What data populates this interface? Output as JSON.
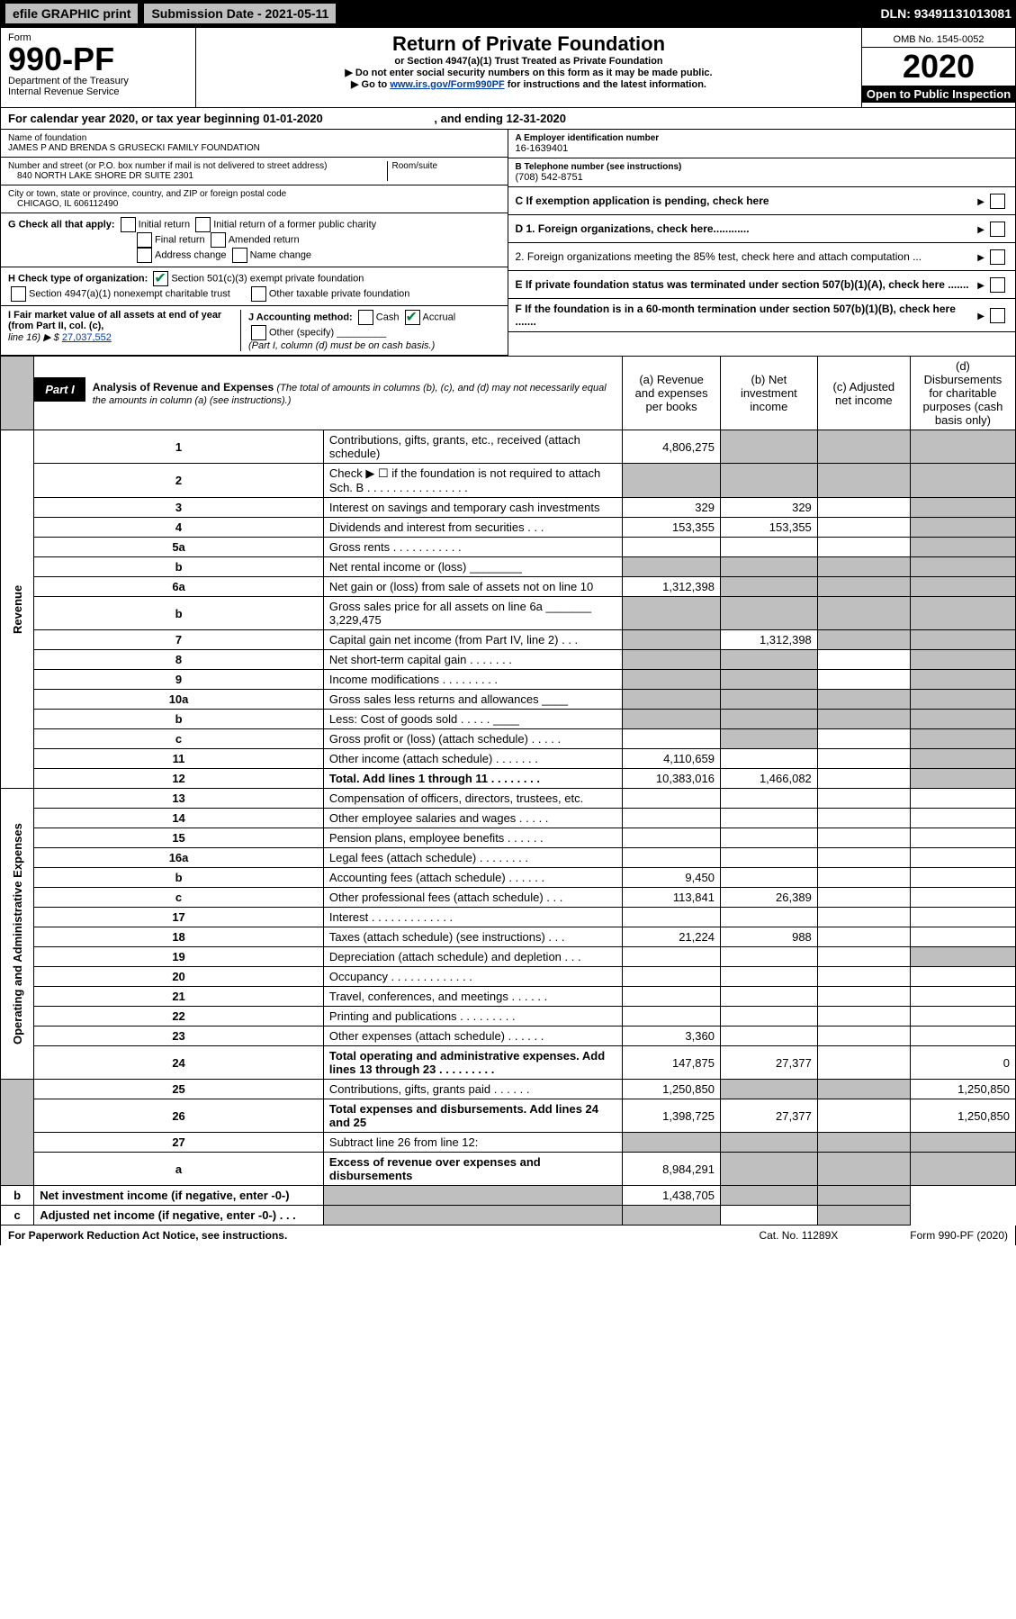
{
  "top_bar": {
    "efile": "efile GRAPHIC print",
    "submission_label": "Submission Date - 2021-05-11",
    "dln": "DLN: 93491131013081"
  },
  "header": {
    "form_text": "Form",
    "form_number": "990-PF",
    "dept": "Department of the Treasury",
    "irs": "Internal Revenue Service",
    "title": "Return of Private Foundation",
    "subtitle": "or Section 4947(a)(1) Trust Treated as Private Foundation",
    "note1": "▶ Do not enter social security numbers on this form as it may be made public.",
    "note2_prefix": "▶ Go to ",
    "note2_link": "www.irs.gov/Form990PF",
    "note2_suffix": " for instructions and the latest information.",
    "omb": "OMB No. 1545-0052",
    "year": "2020",
    "open": "Open to Public Inspection"
  },
  "calendar": {
    "text": "For calendar year 2020, or tax year beginning 01-01-2020",
    "ending": ", and ending 12-31-2020"
  },
  "info_left": {
    "name_label": "Name of foundation",
    "name": "JAMES P AND BRENDA S GRUSECKI FAMILY FOUNDATION",
    "addr_label": "Number and street (or P.O. box number if mail is not delivered to street address)",
    "addr": "840 NORTH LAKE SHORE DR SUITE 2301",
    "room_label": "Room/suite",
    "city_label": "City or town, state or province, country, and ZIP or foreign postal code",
    "city": "CHICAGO, IL  606112490",
    "g_label": "G Check all that apply:",
    "g_opts": {
      "initial": "Initial return",
      "initial_former": "Initial return of a former public charity",
      "final": "Final return",
      "amended": "Amended return",
      "addr_change": "Address change",
      "name_change": "Name change"
    },
    "h_label": "H Check type of organization:",
    "h_501c3": "Section 501(c)(3) exempt private foundation",
    "h_4947": "Section 4947(a)(1) nonexempt charitable trust",
    "h_other": "Other taxable private foundation",
    "i_label": "I Fair market value of all assets at end of year (from Part II, col. (c),",
    "i_line": "line 16) ▶ $",
    "i_value": "27,037,552",
    "j_label": "J Accounting method:",
    "j_cash": "Cash",
    "j_accrual": "Accrual",
    "j_other": "Other (specify)",
    "j_note": "(Part I, column (d) must be on cash basis.)"
  },
  "info_right": {
    "a_label": "A Employer identification number",
    "a_value": "16-1639401",
    "b_label": "B Telephone number (see instructions)",
    "b_value": "(708) 542-8751",
    "c_label": "C If exemption application is pending, check here",
    "d1": "D 1. Foreign organizations, check here............",
    "d2": "2. Foreign organizations meeting the 85% test, check here and attach computation ...",
    "e_label": "E  If private foundation status was terminated under section 507(b)(1)(A), check here .......",
    "f_label": "F  If the foundation is in a 60-month termination under section 507(b)(1)(B), check here ......."
  },
  "part1": {
    "tab": "Part I",
    "title": "Analysis of Revenue and Expenses",
    "title_note": "(The total of amounts in columns (b), (c), and (d) may not necessarily equal the amounts in column (a) (see instructions).)",
    "col_a": "(a) Revenue and expenses per books",
    "col_b": "(b) Net investment income",
    "col_c": "(c) Adjusted net income",
    "col_d": "(d) Disbursements for charitable purposes (cash basis only)"
  },
  "section_labels": {
    "revenue": "Revenue",
    "expenses": "Operating and Administrative Expenses"
  },
  "rows": [
    {
      "n": "1",
      "label": "Contributions, gifts, grants, etc., received (attach schedule)",
      "a": "4,806,275",
      "b": "",
      "c": "",
      "d": "",
      "b_grey": true,
      "c_grey": true,
      "d_grey": true
    },
    {
      "n": "2",
      "label": "Check ▶ ☐ if the foundation is not required to attach Sch. B  . . . . . . . . . . . . . . . .",
      "a": "",
      "b": "",
      "c": "",
      "d": "",
      "a_grey": true,
      "b_grey": true,
      "c_grey": true,
      "d_grey": true
    },
    {
      "n": "3",
      "label": "Interest on savings and temporary cash investments",
      "a": "329",
      "b": "329",
      "c": "",
      "d": "",
      "d_grey": true
    },
    {
      "n": "4",
      "label": "Dividends and interest from securities . . .",
      "a": "153,355",
      "b": "153,355",
      "c": "",
      "d": "",
      "d_grey": true
    },
    {
      "n": "5a",
      "label": "Gross rents . . . . . . . . . . .",
      "a": "",
      "b": "",
      "c": "",
      "d": "",
      "d_grey": true
    },
    {
      "n": "b",
      "label": "Net rental income or (loss) ________",
      "a": "",
      "b": "",
      "c": "",
      "d": "",
      "a_grey": true,
      "b_grey": true,
      "c_grey": true,
      "d_grey": true
    },
    {
      "n": "6a",
      "label": "Net gain or (loss) from sale of assets not on line 10",
      "a": "1,312,398",
      "b": "",
      "c": "",
      "d": "",
      "b_grey": true,
      "c_grey": true,
      "d_grey": true
    },
    {
      "n": "b",
      "label": "Gross sales price for all assets on line 6a _______ 3,229,475",
      "a": "",
      "b": "",
      "c": "",
      "d": "",
      "a_grey": true,
      "b_grey": true,
      "c_grey": true,
      "d_grey": true
    },
    {
      "n": "7",
      "label": "Capital gain net income (from Part IV, line 2) . . .",
      "a": "",
      "b": "1,312,398",
      "c": "",
      "d": "",
      "a_grey": true,
      "c_grey": true,
      "d_grey": true
    },
    {
      "n": "8",
      "label": "Net short-term capital gain . . . . . . .",
      "a": "",
      "b": "",
      "c": "",
      "d": "",
      "a_grey": true,
      "b_grey": true,
      "d_grey": true
    },
    {
      "n": "9",
      "label": "Income modifications . . . . . . . . .",
      "a": "",
      "b": "",
      "c": "",
      "d": "",
      "a_grey": true,
      "b_grey": true,
      "d_grey": true
    },
    {
      "n": "10a",
      "label": "Gross sales less returns and allowances ____",
      "a": "",
      "b": "",
      "c": "",
      "d": "",
      "a_grey": true,
      "b_grey": true,
      "c_grey": true,
      "d_grey": true
    },
    {
      "n": "b",
      "label": "Less: Cost of goods sold . . . . . ____",
      "a": "",
      "b": "",
      "c": "",
      "d": "",
      "a_grey": true,
      "b_grey": true,
      "c_grey": true,
      "d_grey": true
    },
    {
      "n": "c",
      "label": "Gross profit or (loss) (attach schedule) . . . . .",
      "a": "",
      "b": "",
      "c": "",
      "d": "",
      "b_grey": true,
      "d_grey": true
    },
    {
      "n": "11",
      "label": "Other income (attach schedule) . . . . . . .",
      "a": "4,110,659",
      "b": "",
      "c": "",
      "d": "",
      "d_grey": true
    },
    {
      "n": "12",
      "label": "Total. Add lines 1 through 11 . . . . . . . .",
      "bold": true,
      "a": "10,383,016",
      "b": "1,466,082",
      "c": "",
      "d": "",
      "d_grey": true
    },
    {
      "n": "13",
      "label": "Compensation of officers, directors, trustees, etc.",
      "a": "",
      "b": "",
      "c": "",
      "d": ""
    },
    {
      "n": "14",
      "label": "Other employee salaries and wages . . . . .",
      "a": "",
      "b": "",
      "c": "",
      "d": ""
    },
    {
      "n": "15",
      "label": "Pension plans, employee benefits . . . . . .",
      "a": "",
      "b": "",
      "c": "",
      "d": ""
    },
    {
      "n": "16a",
      "label": "Legal fees (attach schedule) . . . . . . . .",
      "a": "",
      "b": "",
      "c": "",
      "d": ""
    },
    {
      "n": "b",
      "label": "Accounting fees (attach schedule) . . . . . .",
      "a": "9,450",
      "b": "",
      "c": "",
      "d": ""
    },
    {
      "n": "c",
      "label": "Other professional fees (attach schedule) . . .",
      "a": "113,841",
      "b": "26,389",
      "c": "",
      "d": ""
    },
    {
      "n": "17",
      "label": "Interest . . . . . . . . . . . . .",
      "a": "",
      "b": "",
      "c": "",
      "d": ""
    },
    {
      "n": "18",
      "label": "Taxes (attach schedule) (see instructions) . . .",
      "a": "21,224",
      "b": "988",
      "c": "",
      "d": ""
    },
    {
      "n": "19",
      "label": "Depreciation (attach schedule) and depletion . . .",
      "a": "",
      "b": "",
      "c": "",
      "d": "",
      "d_grey": true
    },
    {
      "n": "20",
      "label": "Occupancy . . . . . . . . . . . . .",
      "a": "",
      "b": "",
      "c": "",
      "d": ""
    },
    {
      "n": "21",
      "label": "Travel, conferences, and meetings . . . . . .",
      "a": "",
      "b": "",
      "c": "",
      "d": ""
    },
    {
      "n": "22",
      "label": "Printing and publications . . . . . . . . .",
      "a": "",
      "b": "",
      "c": "",
      "d": ""
    },
    {
      "n": "23",
      "label": "Other expenses (attach schedule) . . . . . .",
      "a": "3,360",
      "b": "",
      "c": "",
      "d": ""
    },
    {
      "n": "24",
      "label": "Total operating and administrative expenses. Add lines 13 through 23 . . . . . . . . .",
      "bold": true,
      "a": "147,875",
      "b": "27,377",
      "c": "",
      "d": "0"
    },
    {
      "n": "25",
      "label": "Contributions, gifts, grants paid . . . . . .",
      "a": "1,250,850",
      "b": "",
      "c": "",
      "d": "1,250,850",
      "b_grey": true,
      "c_grey": true
    },
    {
      "n": "26",
      "label": "Total expenses and disbursements. Add lines 24 and 25",
      "bold": true,
      "a": "1,398,725",
      "b": "27,377",
      "c": "",
      "d": "1,250,850"
    },
    {
      "n": "27",
      "label": "Subtract line 26 from line 12:",
      "a": "",
      "b": "",
      "c": "",
      "d": "",
      "a_grey": true,
      "b_grey": true,
      "c_grey": true,
      "d_grey": true
    },
    {
      "n": "a",
      "label": "Excess of revenue over expenses and disbursements",
      "bold": true,
      "a": "8,984,291",
      "b": "",
      "c": "",
      "d": "",
      "b_grey": true,
      "c_grey": true,
      "d_grey": true
    },
    {
      "n": "b",
      "label": "Net investment income (if negative, enter -0-)",
      "bold": true,
      "a": "",
      "b": "1,438,705",
      "c": "",
      "d": "",
      "a_grey": true,
      "c_grey": true,
      "d_grey": true
    },
    {
      "n": "c",
      "label": "Adjusted net income (if negative, enter -0-) . . .",
      "bold": true,
      "a": "",
      "b": "",
      "c": "",
      "d": "",
      "a_grey": true,
      "b_grey": true,
      "d_grey": true
    }
  ],
  "footer": {
    "paperwork": "For Paperwork Reduction Act Notice, see instructions.",
    "cat": "Cat. No. 11289X",
    "form": "Form 990-PF (2020)"
  },
  "colors": {
    "black": "#000000",
    "grey": "#bfbfbf",
    "link": "#0040aa",
    "check": "#008040"
  }
}
